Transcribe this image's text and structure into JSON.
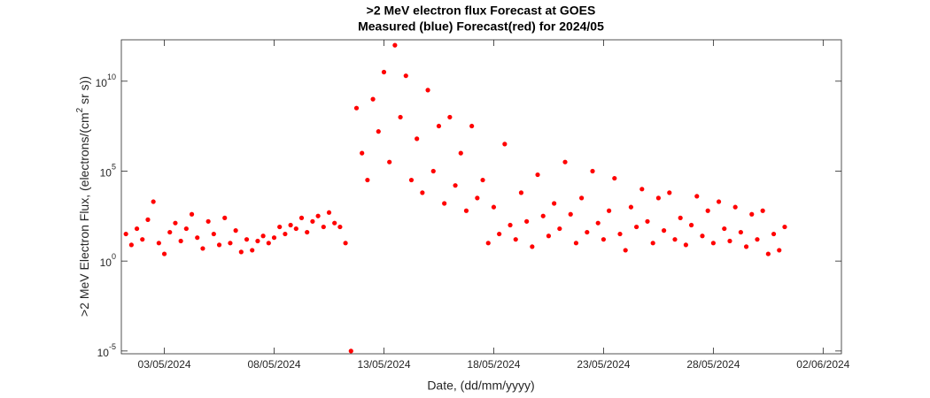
{
  "chart_data": {
    "type": "scatter",
    "title": ">2 MeV electron flux Forecast at GOES",
    "subtitle": "Measured (blue) Forecast(red) for 2024/05",
    "xlabel": "Date, (dd/mm/yyyy)",
    "ylabel": ">2 MeV Electron Flux, (electrons/(cm",
    "ylabel_sup": "2",
    "ylabel_end": " sr s))",
    "color": "#ff0000",
    "log_y": true,
    "xlim": [
      "2024-05-01T01:00",
      "2024-06-02T20:00"
    ],
    "xticks": [
      {
        "value": "2024-05-03T00:00",
        "label": "03/05/2024"
      },
      {
        "value": "2024-05-08T00:00",
        "label": "08/05/2024"
      },
      {
        "value": "2024-05-13T00:00",
        "label": "13/05/2024"
      },
      {
        "value": "2024-05-18T00:00",
        "label": "18/05/2024"
      },
      {
        "value": "2024-05-23T00:00",
        "label": "23/05/2024"
      },
      {
        "value": "2024-05-28T00:00",
        "label": "28/05/2024"
      },
      {
        "value": "2024-06-02T00:00",
        "label": "02/06/2024"
      }
    ],
    "ylim": [
      7e-06,
      2000000000000.0
    ],
    "yticks": [
      {
        "value": 1e-05,
        "label": "10",
        "exponent": "-5"
      },
      {
        "value": 1,
        "label": "10",
        "exponent": "0"
      },
      {
        "value": 100000.0,
        "label": "10",
        "exponent": "5"
      },
      {
        "value": 10000000000.0,
        "label": "10",
        "exponent": "10"
      }
    ],
    "x": [
      "2024-05-01T06:00",
      "2024-05-01T12:00",
      "2024-05-01T18:00",
      "2024-05-02T00:00",
      "2024-05-02T06:00",
      "2024-05-02T12:00",
      "2024-05-02T18:00",
      "2024-05-03T00:00",
      "2024-05-03T06:00",
      "2024-05-03T12:00",
      "2024-05-03T18:00",
      "2024-05-04T00:00",
      "2024-05-04T06:00",
      "2024-05-04T12:00",
      "2024-05-04T18:00",
      "2024-05-05T00:00",
      "2024-05-05T06:00",
      "2024-05-05T12:00",
      "2024-05-05T18:00",
      "2024-05-06T00:00",
      "2024-05-06T06:00",
      "2024-05-06T12:00",
      "2024-05-06T18:00",
      "2024-05-07T00:00",
      "2024-05-07T06:00",
      "2024-05-07T12:00",
      "2024-05-07T18:00",
      "2024-05-08T00:00",
      "2024-05-08T06:00",
      "2024-05-08T12:00",
      "2024-05-08T18:00",
      "2024-05-09T00:00",
      "2024-05-09T06:00",
      "2024-05-09T12:00",
      "2024-05-09T18:00",
      "2024-05-10T00:00",
      "2024-05-10T06:00",
      "2024-05-10T12:00",
      "2024-05-10T18:00",
      "2024-05-11T00:00",
      "2024-05-11T06:00",
      "2024-05-11T12:00",
      "2024-05-11T18:00",
      "2024-05-12T00:00",
      "2024-05-12T06:00",
      "2024-05-12T12:00",
      "2024-05-12T18:00",
      "2024-05-13T00:00",
      "2024-05-13T06:00",
      "2024-05-13T12:00",
      "2024-05-13T18:00",
      "2024-05-14T00:00",
      "2024-05-14T06:00",
      "2024-05-14T12:00",
      "2024-05-14T18:00",
      "2024-05-15T00:00",
      "2024-05-15T06:00",
      "2024-05-15T12:00",
      "2024-05-15T18:00",
      "2024-05-16T00:00",
      "2024-05-16T06:00",
      "2024-05-16T12:00",
      "2024-05-16T18:00",
      "2024-05-17T00:00",
      "2024-05-17T06:00",
      "2024-05-17T12:00",
      "2024-05-17T18:00",
      "2024-05-18T00:00",
      "2024-05-18T06:00",
      "2024-05-18T12:00",
      "2024-05-18T18:00",
      "2024-05-19T00:00",
      "2024-05-19T06:00",
      "2024-05-19T12:00",
      "2024-05-19T18:00",
      "2024-05-20T00:00",
      "2024-05-20T06:00",
      "2024-05-20T12:00",
      "2024-05-20T18:00",
      "2024-05-21T00:00",
      "2024-05-21T06:00",
      "2024-05-21T12:00",
      "2024-05-21T18:00",
      "2024-05-22T00:00",
      "2024-05-22T06:00",
      "2024-05-22T12:00",
      "2024-05-22T18:00",
      "2024-05-23T00:00",
      "2024-05-23T06:00",
      "2024-05-23T12:00",
      "2024-05-23T18:00",
      "2024-05-24T00:00",
      "2024-05-24T06:00",
      "2024-05-24T12:00",
      "2024-05-24T18:00",
      "2024-05-25T00:00",
      "2024-05-25T06:00",
      "2024-05-25T12:00",
      "2024-05-25T18:00",
      "2024-05-26T00:00",
      "2024-05-26T06:00",
      "2024-05-26T12:00",
      "2024-05-26T18:00",
      "2024-05-27T00:00",
      "2024-05-27T06:00",
      "2024-05-27T12:00",
      "2024-05-27T18:00",
      "2024-05-28T00:00",
      "2024-05-28T06:00",
      "2024-05-28T12:00",
      "2024-05-28T18:00",
      "2024-05-29T00:00",
      "2024-05-29T06:00",
      "2024-05-29T12:00",
      "2024-05-29T18:00",
      "2024-05-30T00:00",
      "2024-05-30T06:00",
      "2024-05-30T12:00",
      "2024-05-30T18:00",
      "2024-05-31T00:00",
      "2024-05-31T06:00"
    ],
    "values": [
      32,
      7.9,
      63,
      16,
      200,
      2000,
      10,
      2.5,
      40,
      130,
      13,
      63,
      400,
      20,
      5,
      160,
      32,
      7.9,
      250,
      10,
      50,
      3.2,
      16,
      4,
      13,
      25,
      10,
      20,
      79,
      32,
      100,
      63,
      250,
      40,
      160,
      320,
      79,
      500,
      130,
      79,
      10,
      1e-05,
      320000000.0,
      1000000.0,
      32000.0,
      1000000000.0,
      16000000.0,
      32000000000.0,
      320000.0,
      1000000000000.0,
      100000000.0,
      20000000000.0,
      32000.0,
      6300000.0,
      6300,
      3200000000.0,
      100000.0,
      32000000.0,
      1600,
      100000000.0,
      16000.0,
      1000000.0,
      630,
      32000000.0,
      3200,
      32000.0,
      10,
      1000,
      32,
      3200000.0,
      100,
      16,
      6300,
      160,
      6.3,
      63000.0,
      320,
      25,
      1600,
      63,
      320000.0,
      400,
      10,
      3200,
      40,
      100000.0,
      130,
      16,
      630,
      40000.0,
      32,
      4,
      1000,
      79,
      10000.0,
      160,
      10,
      3200,
      50,
      6300,
      16,
      250,
      7.9,
      100,
      4000,
      25,
      630,
      10,
      2000,
      63,
      13,
      1000,
      40,
      6.3,
      400,
      16,
      630,
      2.5,
      32,
      4,
      79
    ]
  }
}
